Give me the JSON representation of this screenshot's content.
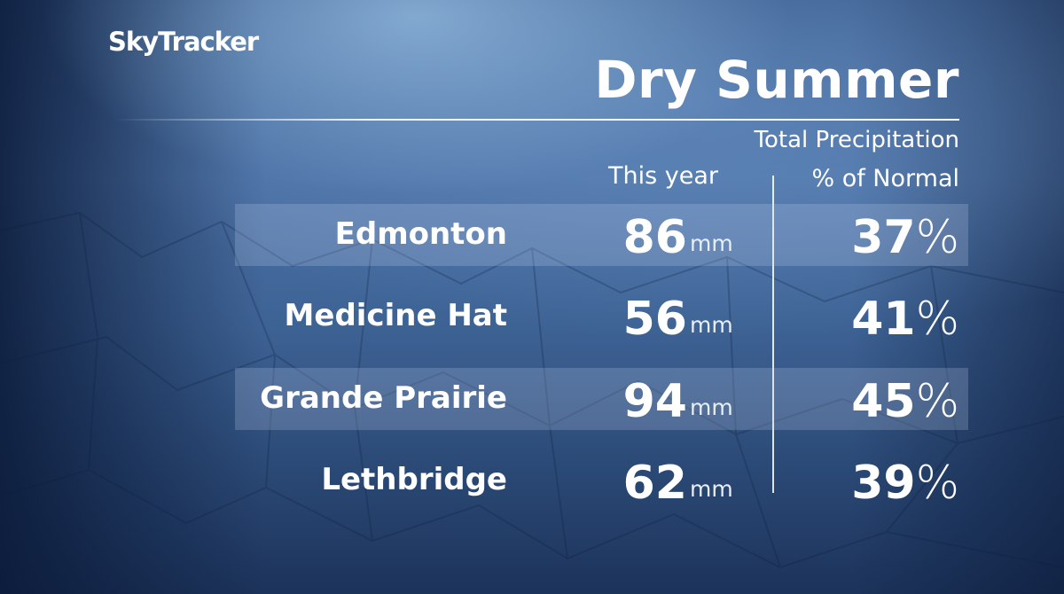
{
  "brand": "SkyTracker",
  "title": "Dry Summer",
  "subtitle": "Total Precipitation",
  "columns": {
    "this_year": "This year",
    "percent_normal": "% of Normal"
  },
  "unit": "mm",
  "percent_symbol": "%",
  "rows": [
    {
      "city": "Edmonton",
      "value": "86",
      "percent": "37",
      "highlight": true
    },
    {
      "city": "Medicine Hat",
      "value": "56",
      "percent": "41",
      "highlight": false
    },
    {
      "city": "Grande Prairie",
      "value": "94",
      "percent": "45",
      "highlight": true
    },
    {
      "city": "Lethbridge",
      "value": "62",
      "percent": "39",
      "highlight": false
    }
  ],
  "colors": {
    "background": "#3d6294",
    "text": "#ffffff"
  }
}
